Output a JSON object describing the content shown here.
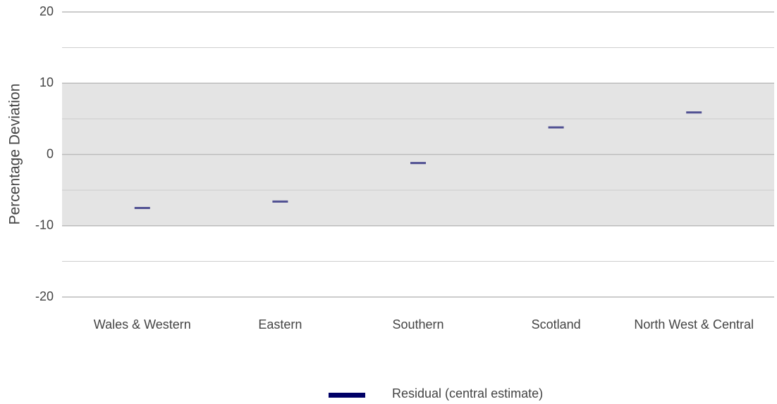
{
  "chart_data": {
    "type": "dash",
    "y_label": "Percentage Deviation",
    "categories": [
      "Wales & Western",
      "Eastern",
      "Southern",
      "Scotland",
      "North West & Central"
    ],
    "series": [
      {
        "name": "Residual (central estimate)",
        "color": "#000066",
        "values": [
          -7.5,
          -6.6,
          -1.2,
          3.8,
          5.9
        ]
      }
    ],
    "ylim": [
      -20,
      20
    ],
    "yticks": [
      -20,
      -10,
      0,
      10,
      20
    ],
    "minor_yticks": [
      -15,
      -5,
      5,
      15
    ],
    "shaded_band": [
      -10,
      10
    ],
    "grid": true,
    "legend": "bottom"
  }
}
